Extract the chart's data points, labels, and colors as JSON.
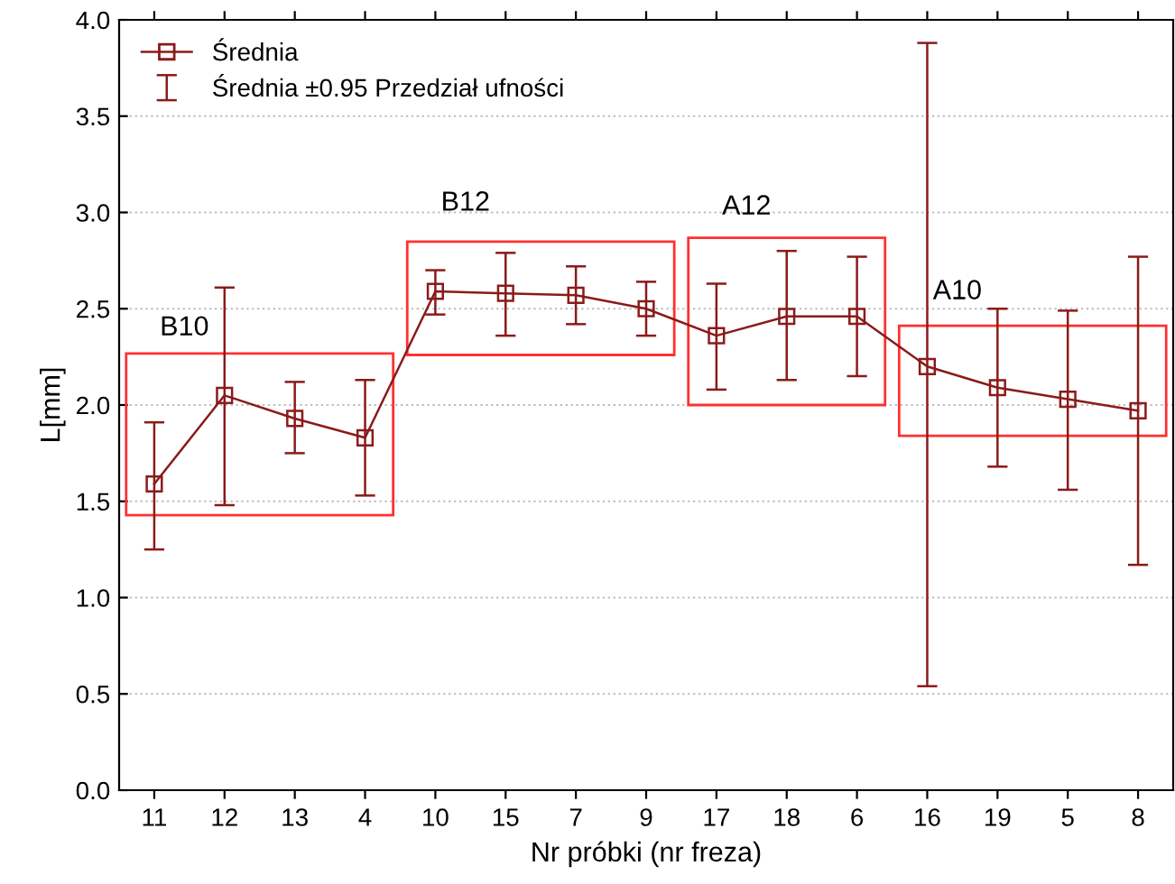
{
  "chart_data": {
    "type": "line",
    "xlabel": "Nr próbki (nr freza)",
    "ylabel": "L[mm]",
    "categories": [
      "11",
      "12",
      "13",
      "4",
      "10",
      "15",
      "7",
      "9",
      "17",
      "18",
      "6",
      "16",
      "19",
      "5",
      "8"
    ],
    "series": [
      {
        "name": "Średnia",
        "color": "#8b1a1a",
        "values": [
          1.59,
          2.05,
          1.93,
          1.83,
          2.59,
          2.58,
          2.57,
          2.5,
          2.36,
          2.46,
          2.46,
          2.2,
          2.09,
          2.03,
          1.97
        ],
        "errors": [
          [
            1.25,
            1.91
          ],
          [
            1.48,
            2.61
          ],
          [
            1.75,
            2.12
          ],
          [
            1.53,
            2.13
          ],
          [
            2.47,
            2.7
          ],
          [
            2.36,
            2.79
          ],
          [
            2.42,
            2.72
          ],
          [
            2.36,
            2.64
          ],
          [
            2.08,
            2.63
          ],
          [
            2.13,
            2.8
          ],
          [
            2.15,
            2.77
          ],
          [
            0.54,
            3.88
          ],
          [
            1.68,
            2.5
          ],
          [
            1.56,
            2.49
          ],
          [
            1.17,
            2.77
          ]
        ]
      }
    ],
    "ylim": [
      0,
      4
    ],
    "yticks": [
      {
        "value": 0,
        "label": "0.0"
      },
      {
        "value": 0.5,
        "label": "0.5"
      },
      {
        "value": 1,
        "label": "1.0"
      },
      {
        "value": 1.5,
        "label": "1.5"
      },
      {
        "value": 2,
        "label": "2.0"
      },
      {
        "value": 2.5,
        "label": "2.5"
      },
      {
        "value": 3,
        "label": "3.0"
      },
      {
        "value": 3.5,
        "label": "3.5"
      },
      {
        "value": 4,
        "label": "4.0"
      }
    ],
    "grid": "y",
    "legend": "top left",
    "marker": "square",
    "line_style": "solid",
    "annotations": [
      "Średnia ±0.95 Przedział ufności",
      "B10",
      "B12",
      "A12",
      "A10"
    ]
  }
}
